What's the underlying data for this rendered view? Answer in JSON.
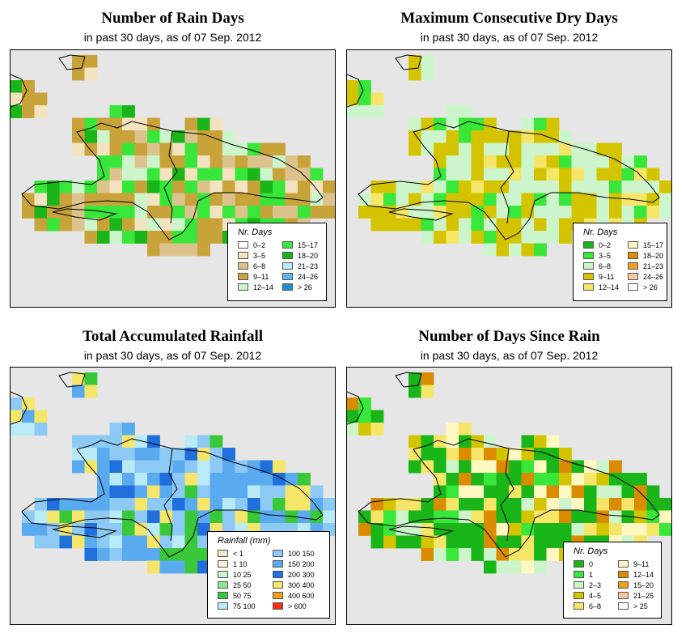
{
  "panels": [
    {
      "title": "Number of Rain Days",
      "subtitle": "in past 30 days, as of  07 Sep. 2012",
      "legend_title": "Nr. Days",
      "legend": [
        {
          "label": "0–2",
          "color": "#ffffff"
        },
        {
          "label": "3–5",
          "color": "#f3e3c0"
        },
        {
          "label": "6–8",
          "color": "#dcc38d"
        },
        {
          "label": "9–11",
          "color": "#c8a33a"
        },
        {
          "label": "12–14",
          "color": "#ccf5cc"
        },
        {
          "label": "15–17",
          "color": "#39e63a"
        },
        {
          "label": "18–20",
          "color": "#19b519"
        },
        {
          "label": "21–23",
          "color": "#b8eaf8"
        },
        {
          "label": "24–26",
          "color": "#5ab8ee"
        },
        {
          "label": "> 26",
          "color": "#1a8fd0"
        }
      ]
    },
    {
      "title": "Maximum Consecutive Dry Days",
      "subtitle": "in past 30 days, as of  07 Sep. 2012",
      "legend_title": "Nr. Days",
      "legend": [
        {
          "label": "0–2",
          "color": "#19b519"
        },
        {
          "label": "3–5",
          "color": "#39e63a"
        },
        {
          "label": "6–8",
          "color": "#ccf5cc"
        },
        {
          "label": "9–11",
          "color": "#d4c400"
        },
        {
          "label": "12–14",
          "color": "#f5e66a"
        },
        {
          "label": "15–17",
          "color": "#fff8c0"
        },
        {
          "label": "18–20",
          "color": "#d98c00"
        },
        {
          "label": "21–23",
          "color": "#f0a020"
        },
        {
          "label": "24–26",
          "color": "#f8c8a0"
        },
        {
          "label": "> 26",
          "color": "#ffffff"
        }
      ]
    },
    {
      "title": "Total Accumulated Rainfall",
      "subtitle": "in past 30 days, as of  07 Sep. 2012",
      "legend_title": "Rainfall (mm)",
      "legend": [
        {
          "label": "<  1",
          "color": "#f5e8cc"
        },
        {
          "label": "1    10",
          "color": "#fff4dc"
        },
        {
          "label": "10    25",
          "color": "#ccf5cc"
        },
        {
          "label": "25    50",
          "color": "#8ee68e"
        },
        {
          "label": "50    75",
          "color": "#39c839"
        },
        {
          "label": "75   100",
          "color": "#b8eaf8"
        },
        {
          "label": "100   150",
          "color": "#8ccaf5"
        },
        {
          "label": "150   200",
          "color": "#5aaaf0"
        },
        {
          "label": "200   300",
          "color": "#1f6fdc"
        },
        {
          "label": "300   400",
          "color": "#f5e66a"
        },
        {
          "label": "400   600",
          "color": "#f0a020"
        },
        {
          "label": "> 600",
          "color": "#f03010"
        }
      ]
    },
    {
      "title": "Number of Days Since Rain",
      "subtitle": "in past 30 days, as of  07 Sep. 2012",
      "legend_title": "Nr. Days",
      "legend": [
        {
          "label": "0",
          "color": "#19b519"
        },
        {
          "label": "1",
          "color": "#39e63a"
        },
        {
          "label": "2–3",
          "color": "#ccf5cc"
        },
        {
          "label": "4–5",
          "color": "#d4c400"
        },
        {
          "label": "6–8",
          "color": "#f5e66a"
        },
        {
          "label": "9–11",
          "color": "#fff8c0"
        },
        {
          "label": "12–14",
          "color": "#d98c00"
        },
        {
          "label": "15–20",
          "color": "#f0a020"
        },
        {
          "label": "21–25",
          "color": "#f8c8a0"
        },
        {
          "label": "> 25",
          "color": "#ffffff"
        }
      ]
    }
  ]
}
